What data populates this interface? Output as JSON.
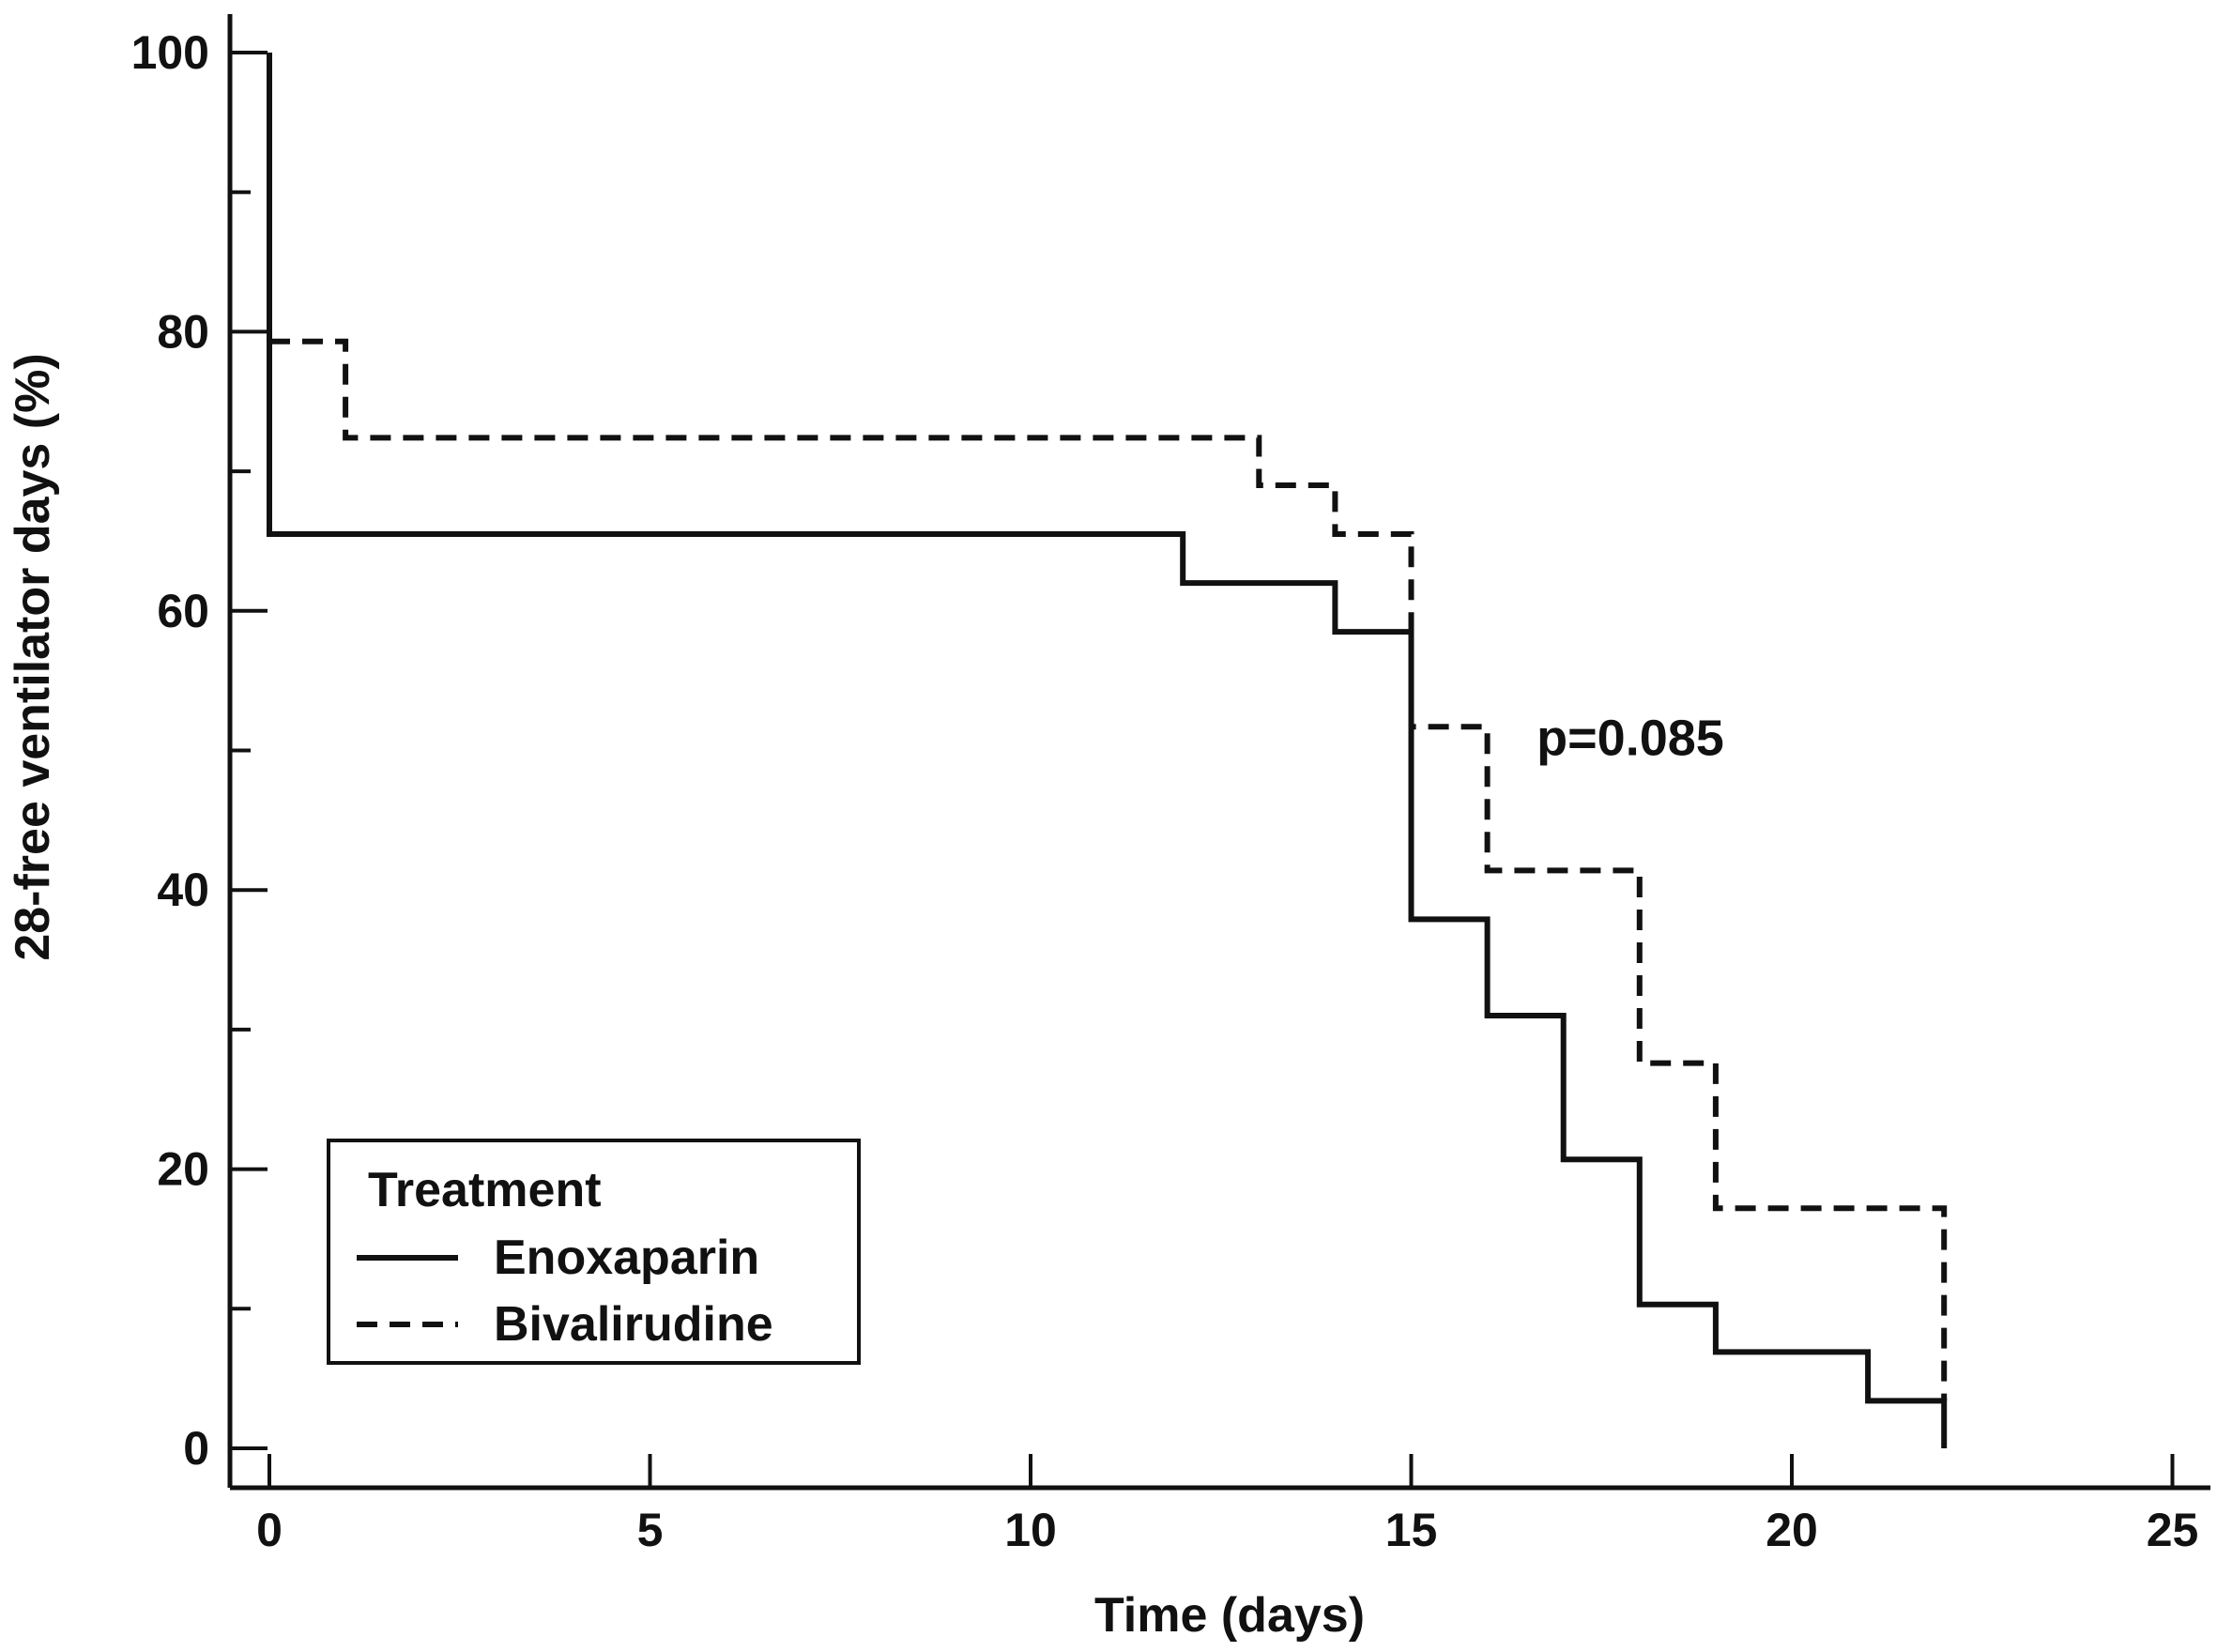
{
  "chart_data": {
    "type": "line",
    "subtype": "kaplan-meier step",
    "title": "",
    "xlabel": "Time (days)",
    "ylabel": "28-free ventilator days (%)",
    "xlim": [
      -0.5,
      25.5
    ],
    "ylim": [
      -3,
      102
    ],
    "x_ticks": [
      0,
      5,
      10,
      15,
      20,
      25
    ],
    "y_ticks": [
      0,
      20,
      40,
      60,
      80,
      100
    ],
    "y_minor_ticks": [
      10,
      30,
      50,
      70,
      90
    ],
    "grid": false,
    "legend": {
      "title": "Treatment",
      "position": "bottom-left",
      "entries": [
        "Enoxaparin",
        "Bivalirudine"
      ]
    },
    "annotation": {
      "text": "p=0.085",
      "x": 16.5,
      "y": 51
    },
    "series": [
      {
        "name": "Enoxaparin",
        "style": "solid",
        "points": [
          [
            0,
            100
          ],
          [
            0,
            65.5
          ],
          [
            12,
            65.5
          ],
          [
            12,
            62
          ],
          [
            14,
            62
          ],
          [
            14,
            58.5
          ],
          [
            15,
            58.5
          ],
          [
            15,
            37.9
          ],
          [
            16,
            37.9
          ],
          [
            16,
            31
          ],
          [
            17,
            31
          ],
          [
            17,
            20.7
          ],
          [
            18,
            20.7
          ],
          [
            18,
            10.3
          ],
          [
            19,
            10.3
          ],
          [
            19,
            6.9
          ],
          [
            21,
            6.9
          ],
          [
            21,
            3.4
          ],
          [
            22,
            3.4
          ],
          [
            22,
            0
          ]
        ]
      },
      {
        "name": "Bivalirudine",
        "style": "dashed",
        "points": [
          [
            0,
            79.3
          ],
          [
            1,
            79.3
          ],
          [
            1,
            72.4
          ],
          [
            13,
            72.4
          ],
          [
            13,
            69
          ],
          [
            14,
            69
          ],
          [
            14,
            65.5
          ],
          [
            15,
            65.5
          ],
          [
            15,
            51.7
          ],
          [
            16,
            51.7
          ],
          [
            16,
            41.4
          ],
          [
            18,
            41.4
          ],
          [
            18,
            27.6
          ],
          [
            19,
            27.6
          ],
          [
            19,
            17.2
          ],
          [
            22,
            17.2
          ],
          [
            22,
            3.4
          ]
        ]
      }
    ]
  }
}
